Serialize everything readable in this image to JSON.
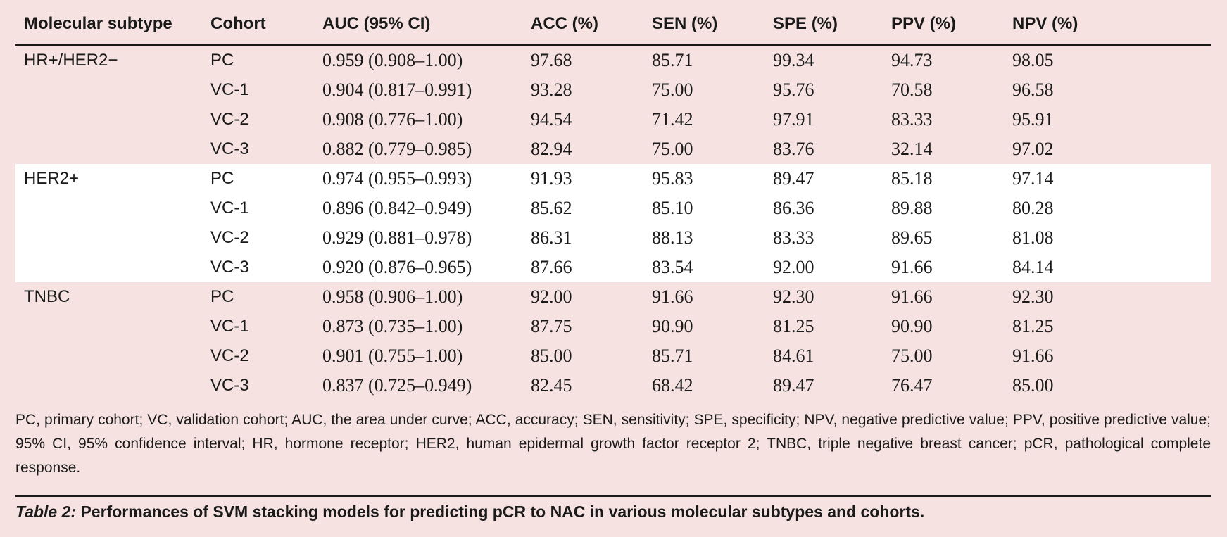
{
  "table": {
    "headers": [
      "Molecular subtype",
      "Cohort",
      "AUC (95% CI)",
      "ACC (%)",
      "SEN (%)",
      "SPE (%)",
      "PPV (%)",
      "NPV (%)"
    ],
    "groups": [
      {
        "subtype": "HR+/HER2−",
        "rows": [
          {
            "cohort": "PC",
            "auc": "0.959 (0.908–1.00)",
            "acc": "97.68",
            "sen": "85.71",
            "spe": "99.34",
            "ppv": "94.73",
            "npv": "98.05"
          },
          {
            "cohort": "VC-1",
            "auc": "0.904 (0.817–0.991)",
            "acc": "93.28",
            "sen": "75.00",
            "spe": "95.76",
            "ppv": "70.58",
            "npv": "96.58"
          },
          {
            "cohort": "VC-2",
            "auc": "0.908 (0.776–1.00)",
            "acc": "94.54",
            "sen": "71.42",
            "spe": "97.91",
            "ppv": "83.33",
            "npv": "95.91"
          },
          {
            "cohort": "VC-3",
            "auc": "0.882 (0.779–0.985)",
            "acc": "82.94",
            "sen": "75.00",
            "spe": "83.76",
            "ppv": "32.14",
            "npv": "97.02"
          }
        ]
      },
      {
        "subtype": "HER2+",
        "rows": [
          {
            "cohort": "PC",
            "auc": "0.974 (0.955–0.993)",
            "acc": "91.93",
            "sen": "95.83",
            "spe": "89.47",
            "ppv": "85.18",
            "npv": "97.14"
          },
          {
            "cohort": "VC-1",
            "auc": "0.896 (0.842–0.949)",
            "acc": "85.62",
            "sen": "85.10",
            "spe": "86.36",
            "ppv": "89.88",
            "npv": "80.28"
          },
          {
            "cohort": "VC-2",
            "auc": "0.929 (0.881–0.978)",
            "acc": "86.31",
            "sen": "88.13",
            "spe": "83.33",
            "ppv": "89.65",
            "npv": "81.08"
          },
          {
            "cohort": "VC-3",
            "auc": "0.920 (0.876–0.965)",
            "acc": "87.66",
            "sen": "83.54",
            "spe": "92.00",
            "ppv": "91.66",
            "npv": "84.14"
          }
        ]
      },
      {
        "subtype": "TNBC",
        "rows": [
          {
            "cohort": "PC",
            "auc": "0.958 (0.906–1.00)",
            "acc": "92.00",
            "sen": "91.66",
            "spe": "92.30",
            "ppv": "91.66",
            "npv": "92.30"
          },
          {
            "cohort": "VC-1",
            "auc": "0.873 (0.735–1.00)",
            "acc": "87.75",
            "sen": "90.90",
            "spe": "81.25",
            "ppv": "90.90",
            "npv": "81.25"
          },
          {
            "cohort": "VC-2",
            "auc": "0.901 (0.755–1.00)",
            "acc": "85.00",
            "sen": "85.71",
            "spe": "84.61",
            "ppv": "75.00",
            "npv": "91.66"
          },
          {
            "cohort": "VC-3",
            "auc": "0.837 (0.725–0.949)",
            "acc": "82.45",
            "sen": "68.42",
            "spe": "89.47",
            "ppv": "76.47",
            "npv": "85.00"
          }
        ]
      }
    ]
  },
  "footnote": "PC, primary cohort; VC, validation cohort; AUC, the area under curve; ACC, accuracy; SEN, sensitivity; SPE, specificity; NPV, negative predictive value; PPV, positive predictive value; 95% CI, 95% confidence interval; HR, hormone receptor; HER2, human epidermal growth factor receptor 2; TNBC, triple negative breast cancer; pCR, pathological complete response.",
  "caption": {
    "label": "Table 2:",
    "text": "Performances of SVM stacking models for predicting pCR to NAC in various molecular subtypes and cohorts."
  },
  "colors": {
    "background": "#f7e2e2",
    "band": "#ffffff",
    "text": "#1a1a1a"
  }
}
